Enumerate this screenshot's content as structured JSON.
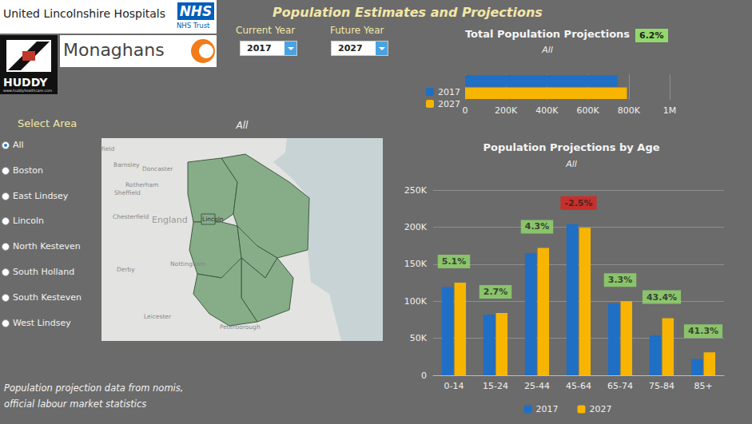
{
  "header": {
    "title": "Population Estimates and Projections",
    "logos": {
      "organisation": "United Lincolnshire Hospitals",
      "nhs": "NHS",
      "trust": "NHS Trust",
      "partner": "Monaghans",
      "huddy": "HUDDY",
      "huddy_url": "www.huddyhealthcare.com"
    }
  },
  "controls": {
    "current_year_label": "Current Year",
    "current_year": "2017",
    "future_year_label": "Future Year",
    "future_year": "2027"
  },
  "area_selector": {
    "title": "Select Area",
    "options": [
      "All",
      "Boston",
      "East Lindsey",
      "Lincoln",
      "North Kesteven",
      "South Holland",
      "South Kesteven",
      "West Lindsey"
    ],
    "selected": "All"
  },
  "map": {
    "title": "All",
    "labels": [
      "field",
      "Barnsley",
      "Doncaster",
      "Rotherham",
      "Sheffield",
      "Chesterfield",
      "England",
      "Lincoln",
      "Nottingham",
      "Derby",
      "Leicester",
      "Peterborough"
    ]
  },
  "footer": [
    "Population projection data from nomis,",
    "official labour market statistics"
  ],
  "chart_data": [
    {
      "type": "bar",
      "orientation": "horizontal",
      "title": "Total Population Projections",
      "subtitle": "All",
      "annotation": "6.2%",
      "categories": [
        null
      ],
      "series": [
        {
          "name": "2017",
          "color": "#1f6fc4",
          "values": [
            745000
          ]
        },
        {
          "name": "2027",
          "color": "#f7b500",
          "values": [
            791000
          ]
        }
      ],
      "xlim": [
        0,
        1000000
      ],
      "xticks": [
        0,
        {
          "value": 200000,
          "label": "200K"
        },
        {
          "value": 400000,
          "label": "400K"
        },
        {
          "value": 600000,
          "label": "600K"
        },
        {
          "value": 800000,
          "label": "800K"
        },
        {
          "value": 1000000,
          "label": "1M"
        }
      ],
      "grid": true,
      "legend": "left",
      "tick_labels": "x"
    },
    {
      "type": "bar",
      "title": "Population Projections by Age",
      "subtitle": "All",
      "categories": [
        "0-14",
        "15-24",
        "25-44",
        "45-64",
        "65-74",
        "75-84",
        "85+"
      ],
      "series": [
        {
          "name": "2017",
          "color": "#1f6fc4",
          "values": [
            119000,
            82000,
            165000,
            204000,
            97000,
            54000,
            22000
          ]
        },
        {
          "name": "2027",
          "color": "#f7b500",
          "values": [
            125000,
            84000,
            172000,
            199000,
            100000,
            77000,
            31000
          ]
        }
      ],
      "annotations": [
        "5.1%",
        "2.7%",
        "4.3%",
        "-2.5%",
        "3.3%",
        "43.4%",
        "41.3%"
      ],
      "ylim": [
        0,
        250000
      ],
      "yticks": [
        0,
        {
          "value": 50000,
          "label": "50K"
        },
        {
          "value": 100000,
          "label": "100K"
        },
        {
          "value": 150000,
          "label": "150K"
        },
        {
          "value": 200000,
          "label": "200K"
        },
        {
          "value": 250000,
          "label": "250K"
        }
      ],
      "grid": true,
      "legend": "bottom"
    }
  ]
}
